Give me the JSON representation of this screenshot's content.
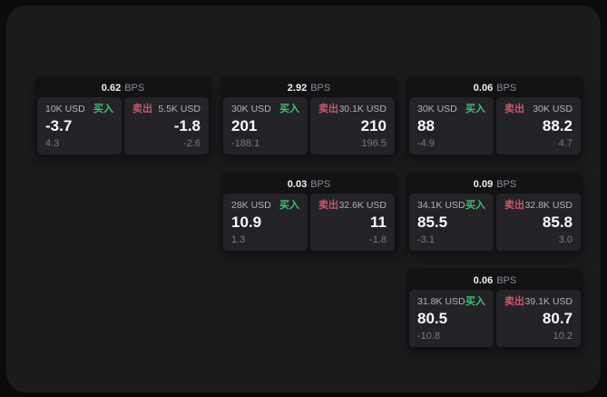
{
  "labels": {
    "bps_unit": "BPS",
    "buy": "买入",
    "sell": "卖出"
  },
  "colors": {
    "buy_green": "#3ec172",
    "sell_red": "#c9566c",
    "panel_bg": "#1b1b1d",
    "card_bg": "#121214",
    "subpanel_bg": "#232327"
  },
  "cards": [
    {
      "bps": "0.62",
      "row": 0,
      "col": 0,
      "buy": {
        "amount": "10K USD",
        "value": "-3.7",
        "delta": "4.3"
      },
      "sell": {
        "amount": "5.5K USD",
        "value": "-1.8",
        "delta": "-2.6"
      }
    },
    {
      "bps": "2.92",
      "row": 0,
      "col": 1,
      "buy": {
        "amount": "30K USD",
        "value": "201",
        "delta": "-188.1"
      },
      "sell": {
        "amount": "30.1K USD",
        "value": "210",
        "delta": "196.5"
      }
    },
    {
      "bps": "0.06",
      "row": 0,
      "col": 2,
      "buy": {
        "amount": "30K USD",
        "value": "88",
        "delta": "-4.9"
      },
      "sell": {
        "amount": "30K USD",
        "value": "88.2",
        "delta": "4.7"
      }
    },
    {
      "bps": "0.03",
      "row": 1,
      "col": 1,
      "buy": {
        "amount": "28K USD",
        "value": "10.9",
        "delta": "1.3"
      },
      "sell": {
        "amount": "32.6K USD",
        "value": "11",
        "delta": "-1.8"
      }
    },
    {
      "bps": "0.09",
      "row": 1,
      "col": 2,
      "buy": {
        "amount": "34.1K USD",
        "value": "85.5",
        "delta": "-3.1"
      },
      "sell": {
        "amount": "32.8K USD",
        "value": "85.8",
        "delta": "3.0"
      }
    },
    {
      "bps": "0.06",
      "row": 2,
      "col": 2,
      "buy": {
        "amount": "31.8K USD",
        "value": "80.5",
        "delta": "-10.8"
      },
      "sell": {
        "amount": "39.1K USD",
        "value": "80.7",
        "delta": "10.2"
      }
    }
  ]
}
